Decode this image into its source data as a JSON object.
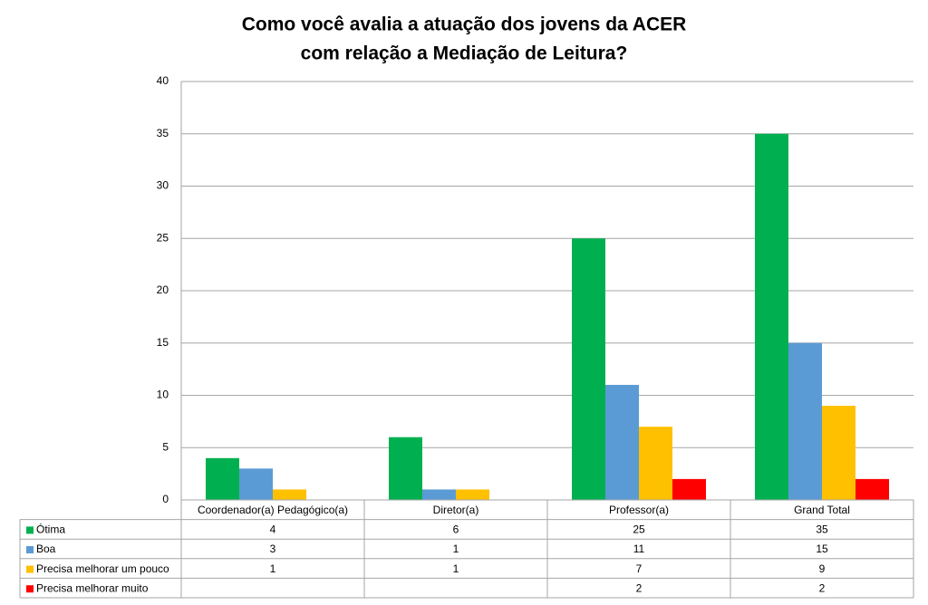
{
  "chart_data": {
    "type": "bar",
    "title": [
      "Como você avalia a atuação dos jovens da ACER",
      "com relação a Mediação de Leitura?"
    ],
    "categories": [
      "Coordenador(a) Pedagógico(a)",
      "Diretor(a)",
      "Professor(a)",
      "Grand Total"
    ],
    "series": [
      {
        "name": "Ótima",
        "color": "#00b050",
        "values": [
          4,
          6,
          25,
          35
        ]
      },
      {
        "name": "Boa",
        "color": "#5b9bd5",
        "values": [
          3,
          1,
          11,
          15
        ]
      },
      {
        "name": "Precisa melhorar um pouco",
        "color": "#ffc000",
        "values": [
          1,
          1,
          7,
          9
        ]
      },
      {
        "name": "Precisa melhorar muito",
        "color": "#ff0000",
        "values": [
          null,
          null,
          2,
          2
        ]
      }
    ],
    "ylim": [
      0,
      40
    ],
    "yticks": [
      0,
      5,
      10,
      15,
      20,
      25,
      30,
      35,
      40
    ],
    "grid": true
  }
}
